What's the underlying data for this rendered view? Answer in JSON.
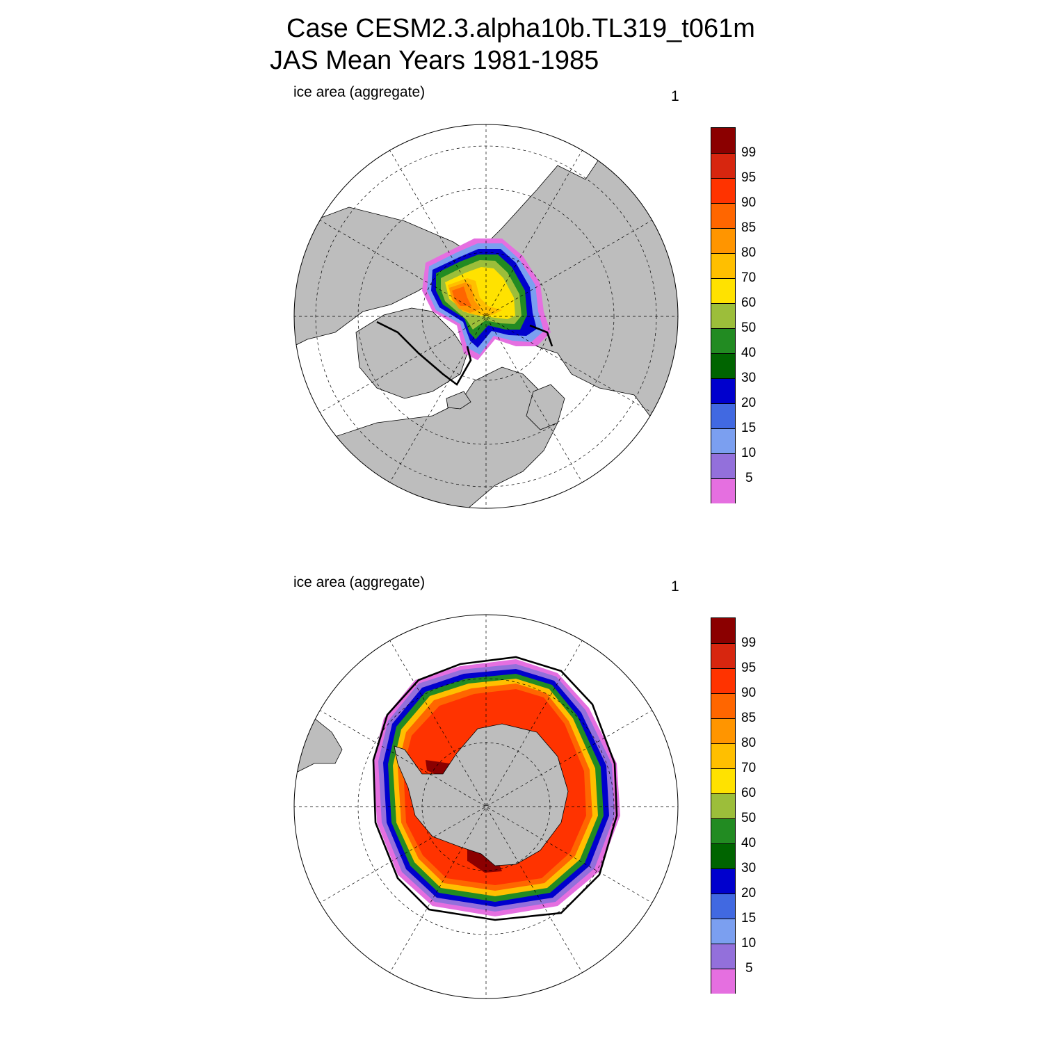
{
  "title_line1": "Case CESM2.3.alpha10b.TL319_t061m",
  "title_line2": "JAS Mean   Years 1981-1985",
  "panels": [
    {
      "name": "north",
      "left_label": "ice area  (aggregate)",
      "right_label": "1"
    },
    {
      "name": "south",
      "left_label": "ice area  (aggregate)",
      "right_label": "1"
    }
  ],
  "colorbar": {
    "labels": [
      "99",
      "95",
      "90",
      "85",
      "80",
      "70",
      "60",
      "50",
      "40",
      "30",
      "20",
      "15",
      "10",
      "5"
    ],
    "colors": [
      "#8b0000",
      "#d7260f",
      "#ff3300",
      "#ff6600",
      "#ff9500",
      "#ffbf00",
      "#ffe200",
      "#9cbe3a",
      "#228b22",
      "#006400",
      "#0000cd",
      "#4169e1",
      "#7b9ff0",
      "#9370db",
      "#e56fe0"
    ]
  },
  "colors": {
    "land": "#bdbdbd",
    "ocean": "#ffffff",
    "coast": "#000000"
  }
}
